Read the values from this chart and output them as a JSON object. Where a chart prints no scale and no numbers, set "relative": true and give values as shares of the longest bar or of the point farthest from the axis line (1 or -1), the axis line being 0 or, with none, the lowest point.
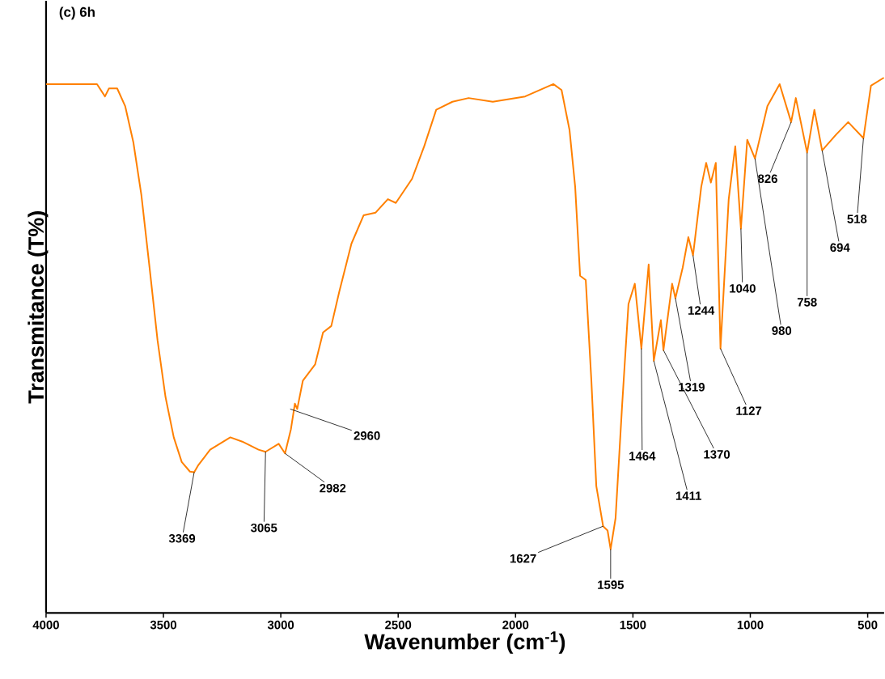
{
  "chart_data": {
    "type": "line",
    "title": "(c) 6h",
    "xlabel": "Wavenumber (cm$^{-1}$)",
    "ylabel": "Transmitance (T%)",
    "relative": true,
    "xlim": [
      4000,
      430
    ],
    "xticks": [
      4000,
      3500,
      3000,
      2500,
      2000,
      1500,
      1000,
      500
    ],
    "color": "#ff8000",
    "x": [
      4000,
      3783,
      3749,
      3732,
      3697,
      3663,
      3628,
      3594,
      3559,
      3525,
      3491,
      3456,
      3422,
      3387,
      3369,
      3353,
      3301,
      3215,
      3164,
      3095,
      3065,
      3009,
      2982,
      2957,
      2940,
      2930,
      2906,
      2854,
      2820,
      2785,
      2751,
      2699,
      2647,
      2596,
      2544,
      2510,
      2441,
      2389,
      2338,
      2269,
      2200,
      2097,
      1959,
      1839,
      1804,
      1770,
      1746,
      1725,
      1701,
      1677,
      1656,
      1627,
      1608,
      1595,
      1574,
      1546,
      1519,
      1492,
      1464,
      1433,
      1411,
      1381,
      1370,
      1333,
      1319,
      1288,
      1264,
      1244,
      1209,
      1188,
      1168,
      1147,
      1127,
      1092,
      1064,
      1040,
      1013,
      980,
      927,
      875,
      826,
      806,
      758,
      727,
      694,
      634,
      583,
      518,
      486,
      431
    ],
    "values": [
      0.988,
      0.988,
      0.965,
      0.98,
      0.98,
      0.947,
      0.879,
      0.781,
      0.645,
      0.509,
      0.403,
      0.328,
      0.282,
      0.264,
      0.263,
      0.275,
      0.305,
      0.328,
      0.32,
      0.305,
      0.301,
      0.316,
      0.298,
      0.343,
      0.391,
      0.381,
      0.434,
      0.464,
      0.524,
      0.536,
      0.6,
      0.69,
      0.743,
      0.748,
      0.773,
      0.766,
      0.811,
      0.872,
      0.94,
      0.955,
      0.962,
      0.955,
      0.965,
      0.988,
      0.977,
      0.902,
      0.796,
      0.63,
      0.622,
      0.434,
      0.237,
      0.162,
      0.154,
      0.119,
      0.177,
      0.388,
      0.577,
      0.615,
      0.494,
      0.651,
      0.471,
      0.547,
      0.491,
      0.615,
      0.588,
      0.645,
      0.702,
      0.668,
      0.796,
      0.841,
      0.804,
      0.841,
      0.494,
      0.773,
      0.872,
      0.718,
      0.884,
      0.849,
      0.947,
      0.988,
      0.917,
      0.962,
      0.86,
      0.94,
      0.864,
      0.894,
      0.917,
      0.887,
      0.985,
      1.0
    ],
    "annotations": [
      {
        "text": "3369",
        "x": 3369,
        "y": 0.263
      },
      {
        "text": "3065",
        "x": 3065,
        "y": 0.301
      },
      {
        "text": "2982",
        "x": 2982,
        "y": 0.298
      },
      {
        "text": "2960",
        "x": 2960,
        "y": 0.381
      },
      {
        "text": "1627",
        "x": 1627,
        "y": 0.162
      },
      {
        "text": "1595",
        "x": 1595,
        "y": 0.119
      },
      {
        "text": "1464",
        "x": 1464,
        "y": 0.494
      },
      {
        "text": "1411",
        "x": 1411,
        "y": 0.471
      },
      {
        "text": "1370",
        "x": 1370,
        "y": 0.491
      },
      {
        "text": "1319",
        "x": 1319,
        "y": 0.588
      },
      {
        "text": "1244",
        "x": 1244,
        "y": 0.668
      },
      {
        "text": "1127",
        "x": 1127,
        "y": 0.494
      },
      {
        "text": "1040",
        "x": 1040,
        "y": 0.718
      },
      {
        "text": "980",
        "x": 980,
        "y": 0.849
      },
      {
        "text": "826",
        "x": 826,
        "y": 0.917
      },
      {
        "text": "758",
        "x": 758,
        "y": 0.86
      },
      {
        "text": "694",
        "x": 694,
        "y": 0.864
      },
      {
        "text": "518",
        "x": 518,
        "y": 0.887
      }
    ]
  }
}
